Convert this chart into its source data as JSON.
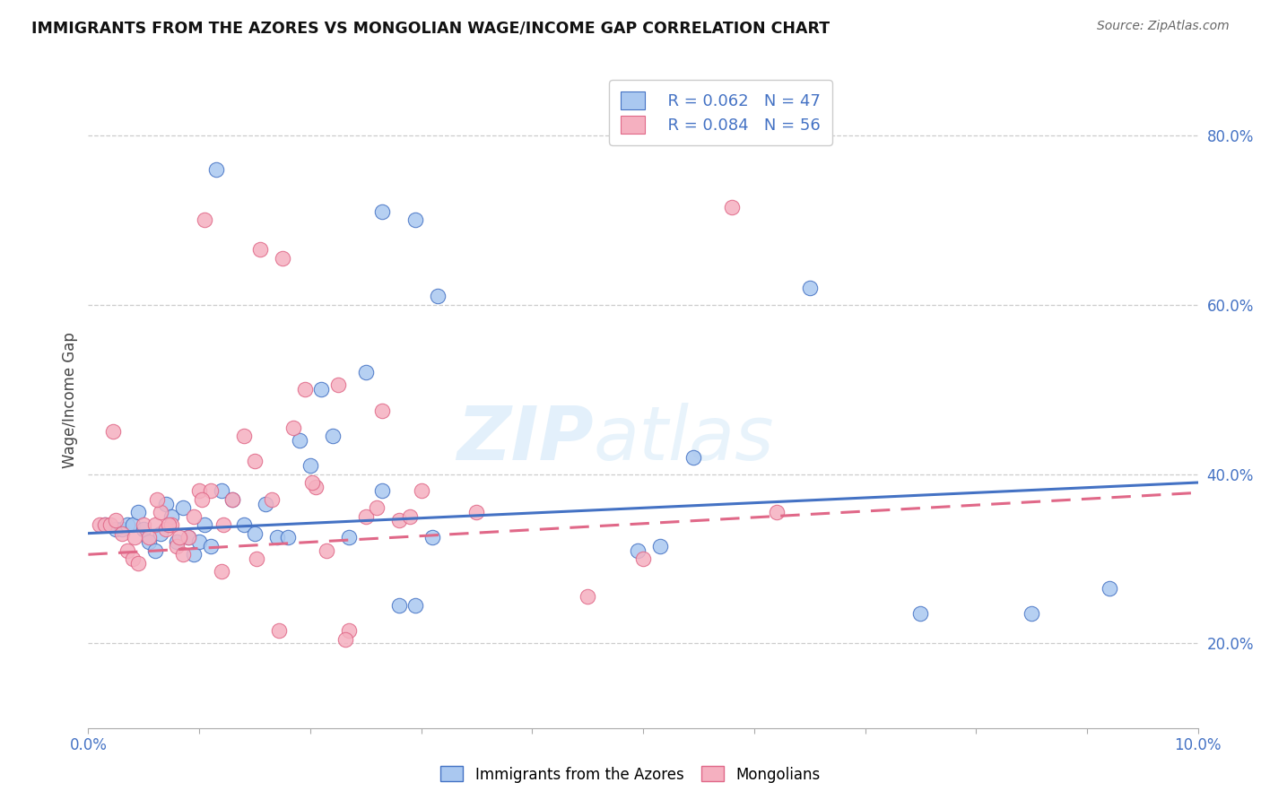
{
  "title": "IMMIGRANTS FROM THE AZORES VS MONGOLIAN WAGE/INCOME GAP CORRELATION CHART",
  "source": "Source: ZipAtlas.com",
  "ylabel": "Wage/Income Gap",
  "blue_color": "#aac8f0",
  "pink_color": "#f5b0c0",
  "blue_edge_color": "#4472c4",
  "pink_edge_color": "#e06888",
  "blue_line_color": "#4472c4",
  "pink_line_color": "#e06888",
  "tick_color": "#4472c4",
  "legend_R1": "R = 0.062",
  "legend_N1": "N = 47",
  "legend_R2": "R = 0.084",
  "legend_N2": "N = 56",
  "blue_label": "Immigrants from the Azores",
  "pink_label": "Mongolians",
  "watermark_zip": "ZIP",
  "watermark_atlas": "atlas",
  "xlim": [
    0.0,
    10.0
  ],
  "ylim": [
    0.1,
    0.875
  ],
  "yticks": [
    0.2,
    0.4,
    0.6,
    0.8
  ],
  "ytick_labels": [
    "20.0%",
    "40.0%",
    "60.0%",
    "80.0%"
  ],
  "blue_scatter_x": [
    1.15,
    2.1,
    2.65,
    2.95,
    3.15,
    0.15,
    0.25,
    0.3,
    0.35,
    0.4,
    0.45,
    0.5,
    0.55,
    0.6,
    0.65,
    0.7,
    0.75,
    0.8,
    0.85,
    0.9,
    0.95,
    1.0,
    1.05,
    1.1,
    1.2,
    1.3,
    1.4,
    1.5,
    1.6,
    1.7,
    1.8,
    1.9,
    2.0,
    2.2,
    2.35,
    2.5,
    2.65,
    2.8,
    2.95,
    3.1,
    4.95,
    5.45,
    6.5,
    7.5,
    8.5,
    9.2,
    5.15
  ],
  "blue_scatter_y": [
    0.76,
    0.5,
    0.71,
    0.7,
    0.61,
    0.34,
    0.335,
    0.335,
    0.34,
    0.34,
    0.355,
    0.335,
    0.32,
    0.31,
    0.33,
    0.365,
    0.35,
    0.32,
    0.36,
    0.325,
    0.305,
    0.32,
    0.34,
    0.315,
    0.38,
    0.37,
    0.34,
    0.33,
    0.365,
    0.325,
    0.325,
    0.44,
    0.41,
    0.445,
    0.325,
    0.52,
    0.38,
    0.245,
    0.245,
    0.325,
    0.31,
    0.42,
    0.62,
    0.235,
    0.235,
    0.265,
    0.315
  ],
  "pink_scatter_x": [
    1.05,
    1.55,
    1.75,
    1.95,
    2.25,
    2.65,
    0.1,
    0.15,
    0.2,
    0.25,
    0.3,
    0.35,
    0.4,
    0.45,
    0.5,
    0.55,
    0.6,
    0.65,
    0.7,
    0.75,
    0.8,
    0.85,
    0.9,
    0.95,
    1.0,
    1.1,
    1.2,
    1.3,
    1.4,
    1.5,
    1.65,
    1.85,
    2.05,
    2.15,
    2.35,
    2.5,
    2.6,
    2.8,
    2.9,
    3.0,
    3.5,
    4.5,
    5.0,
    5.8,
    6.2,
    0.22,
    0.42,
    0.62,
    0.72,
    0.82,
    1.02,
    1.22,
    1.52,
    1.72,
    2.02,
    2.32
  ],
  "pink_scatter_y": [
    0.7,
    0.665,
    0.655,
    0.5,
    0.505,
    0.475,
    0.34,
    0.34,
    0.34,
    0.345,
    0.33,
    0.31,
    0.3,
    0.295,
    0.34,
    0.325,
    0.34,
    0.355,
    0.335,
    0.34,
    0.315,
    0.305,
    0.325,
    0.35,
    0.38,
    0.38,
    0.285,
    0.37,
    0.445,
    0.415,
    0.37,
    0.455,
    0.385,
    0.31,
    0.215,
    0.35,
    0.36,
    0.345,
    0.35,
    0.38,
    0.355,
    0.255,
    0.3,
    0.715,
    0.355,
    0.45,
    0.325,
    0.37,
    0.34,
    0.325,
    0.37,
    0.34,
    0.3,
    0.215,
    0.39,
    0.205
  ],
  "blue_trend_x": [
    0.0,
    10.0
  ],
  "blue_trend_y": [
    0.33,
    0.39
  ],
  "pink_trend_x": [
    0.0,
    10.0
  ],
  "pink_trend_y": [
    0.305,
    0.378
  ]
}
